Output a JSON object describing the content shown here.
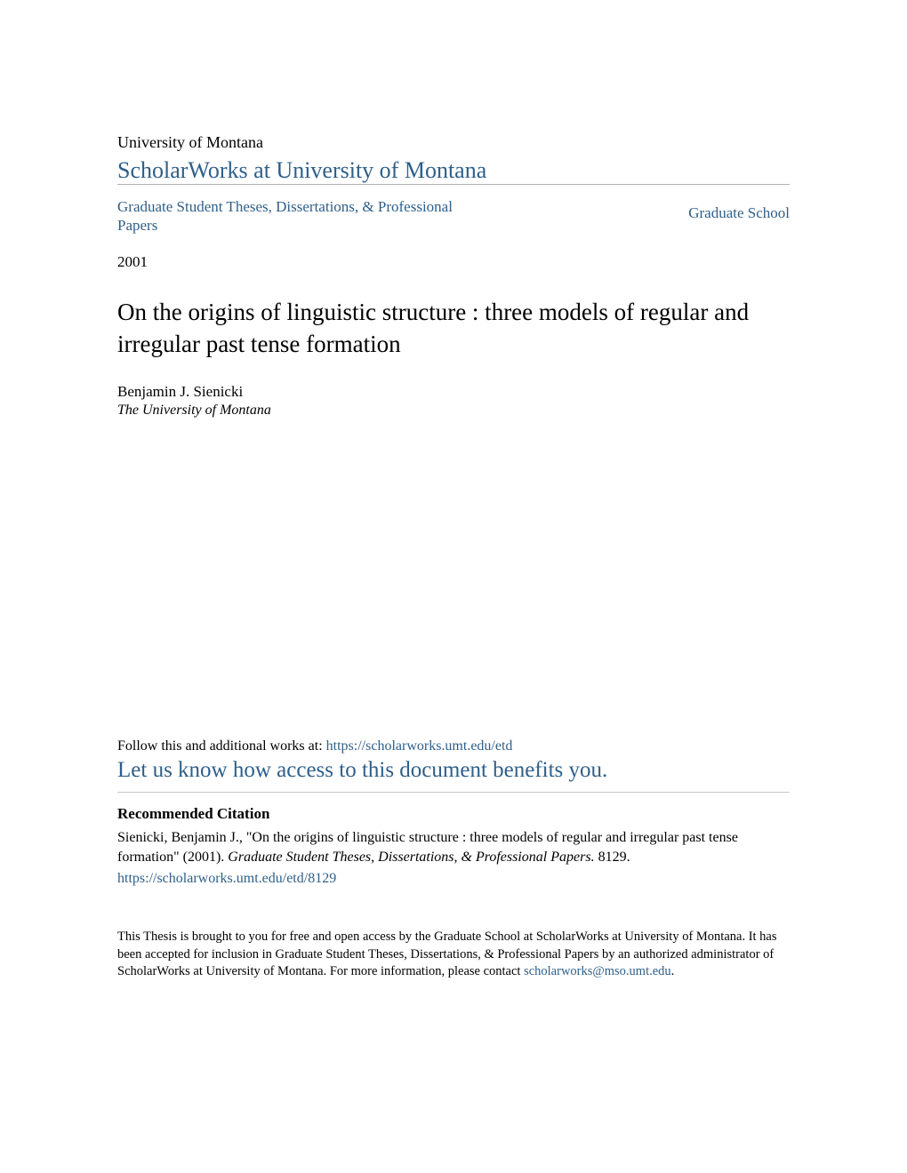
{
  "colors": {
    "link": "#2e5f8a",
    "text": "#000000",
    "rule": "#b0b0b0",
    "background": "#ffffff"
  },
  "typography": {
    "body_family": "Georgia, 'Times New Roman', serif",
    "institution_size_pt": 18,
    "repo_title_size_pt": 26,
    "breadcrumb_size_pt": 17,
    "year_size_pt": 17,
    "title_size_pt": 27,
    "author_size_pt": 17,
    "affiliation_size_pt": 16,
    "follow_size_pt": 16,
    "benefit_size_pt": 25,
    "recommended_heading_size_pt": 17,
    "citation_size_pt": 16,
    "footer_size_pt": 14.5
  },
  "header": {
    "institution": "University of Montana",
    "repository": "ScholarWorks at University of Montana"
  },
  "breadcrumb": {
    "left": "Graduate Student Theses, Dissertations, & Professional Papers",
    "right": "Graduate School"
  },
  "meta": {
    "year": "2001"
  },
  "work": {
    "title": "On the origins of linguistic structure : three models of regular and irregular past tense formation",
    "author": "Benjamin J. Sienicki",
    "affiliation": "The University of Montana"
  },
  "follow": {
    "prefix": "Follow this and additional works at: ",
    "url": "https://scholarworks.umt.edu/etd",
    "benefit": "Let us know how access to this document benefits you."
  },
  "citation": {
    "heading": "Recommended Citation",
    "text_before_italic": "Sienicki, Benjamin J., \"On the origins of linguistic structure : three models of regular and irregular past tense formation\" (2001). ",
    "italic": "Graduate Student Theses, Dissertations, & Professional Papers.",
    "text_after_italic": " 8129.",
    "link": "https://scholarworks.umt.edu/etd/8129"
  },
  "footer": {
    "text_before_link": "This Thesis is brought to you for free and open access by the Graduate School at ScholarWorks at University of Montana. It has been accepted for inclusion in Graduate Student Theses, Dissertations, & Professional Papers by an authorized administrator of ScholarWorks at University of Montana. For more information, please contact ",
    "link": "scholarworks@mso.umt.edu",
    "text_after_link": "."
  }
}
